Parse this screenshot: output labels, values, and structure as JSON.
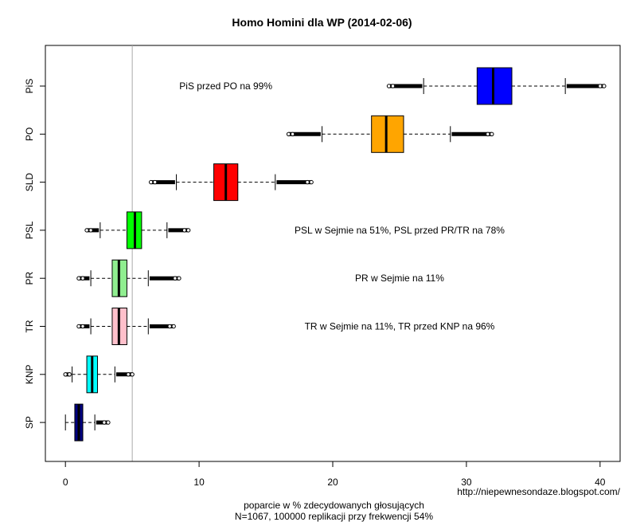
{
  "chart_data": {
    "type": "boxplot",
    "title": "Homo Homini dla WP (2014-02-06)",
    "xlabel_line1": "poparcie w % zdecydowanych głosujących",
    "xlabel_line2": "N=1067, 100000 replikacji przy frekwencji 54%",
    "source": "http://niepewnesondaze.blogspot.com/",
    "xlim": [
      -1.5,
      41.5
    ],
    "xticks": [
      0,
      10,
      20,
      30,
      40
    ],
    "threshold": 5,
    "threshold_color": "#aaaaaa",
    "series": [
      {
        "name": "PiS",
        "color": "#0000ff",
        "whisker_low": 26.8,
        "q1": 30.8,
        "median": 32.0,
        "q3": 33.4,
        "whisker_high": 37.4,
        "out_low": [
          24.2,
          26.7
        ],
        "out_high": [
          37.5,
          40.3
        ]
      },
      {
        "name": "PO",
        "color": "#ffa500",
        "whisker_low": 19.2,
        "q1": 22.9,
        "median": 24.0,
        "q3": 25.3,
        "whisker_high": 28.8,
        "out_low": [
          16.7,
          19.1
        ],
        "out_high": [
          28.9,
          31.9
        ]
      },
      {
        "name": "SLD",
        "color": "#ff0000",
        "whisker_low": 8.3,
        "q1": 11.1,
        "median": 12.0,
        "q3": 12.9,
        "whisker_high": 15.7,
        "out_low": [
          6.4,
          8.2
        ],
        "out_high": [
          15.8,
          18.4
        ]
      },
      {
        "name": "PSL",
        "color": "#00ff00",
        "whisker_low": 2.6,
        "q1": 4.6,
        "median": 5.2,
        "q3": 5.7,
        "whisker_high": 7.6,
        "out_low": [
          1.6,
          2.5
        ],
        "out_high": [
          7.7,
          9.2
        ]
      },
      {
        "name": "PR",
        "color": "#90ee90",
        "whisker_low": 1.9,
        "q1": 3.5,
        "median": 4.0,
        "q3": 4.6,
        "whisker_high": 6.2,
        "out_low": [
          1.0,
          1.8
        ],
        "out_high": [
          6.3,
          8.5
        ]
      },
      {
        "name": "TR",
        "color": "#ffc0cb",
        "whisker_low": 1.9,
        "q1": 3.5,
        "median": 4.0,
        "q3": 4.6,
        "whisker_high": 6.2,
        "out_low": [
          1.0,
          1.8
        ],
        "out_high": [
          6.3,
          8.1
        ]
      },
      {
        "name": "KNP",
        "color": "#00ffff",
        "whisker_low": 0.5,
        "q1": 1.6,
        "median": 2.0,
        "q3": 2.4,
        "whisker_high": 3.7,
        "out_low": [
          0.0,
          0.4
        ],
        "out_high": [
          3.8,
          5.0
        ]
      },
      {
        "name": "SP",
        "color": "#000080",
        "whisker_low": 0.0,
        "q1": 0.7,
        "median": 1.0,
        "q3": 1.3,
        "whisker_high": 2.2,
        "out_low": [],
        "out_high": [
          2.3,
          3.2
        ]
      }
    ],
    "annotations": [
      {
        "text": "PiS przed PO na 99%",
        "x": 12,
        "row": "PiS"
      },
      {
        "text": "PSL w Sejmie na 51%, PSL przed PR/TR na 78%",
        "x": 25,
        "row": "PSL"
      },
      {
        "text": "PR w Sejmie na 11%",
        "x": 25,
        "row": "PR"
      },
      {
        "text": "TR w Sejmie na 11%, TR przed KNP na 96%",
        "x": 25,
        "row": "TR"
      }
    ]
  }
}
